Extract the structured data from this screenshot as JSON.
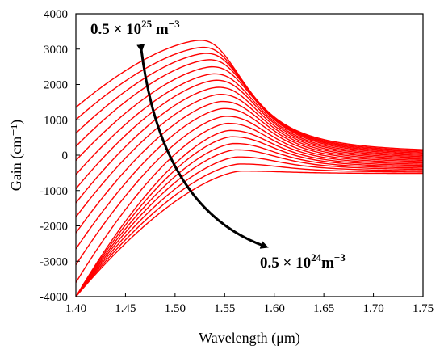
{
  "chart_data": {
    "type": "line",
    "title": "",
    "xlabel": "Wavelength (μm)",
    "ylabel": "Gain (cm⁻¹)",
    "xlim": [
      1.4,
      1.75
    ],
    "ylim": [
      -4000,
      4000
    ],
    "xticks": [
      "1.40",
      "1.45",
      "1.50",
      "1.55",
      "1.60",
      "1.65",
      "1.70",
      "1.75"
    ],
    "yticks": [
      "4000",
      "3000",
      "2000",
      "1000",
      "0",
      "-1000",
      "-2000",
      "-3000",
      "-4000"
    ],
    "grid": false,
    "line_color": "#ff0000",
    "annotations": {
      "top": {
        "coef": "0.5",
        "times": "×",
        "base": "10",
        "exp": "25",
        "unit": "m",
        "unit_exp": "−3"
      },
      "bottom": {
        "coef": "0.5",
        "times": "×",
        "base": "10",
        "exp": "24",
        "unit": "m",
        "unit_exp": "−3"
      }
    },
    "series_description": "20 gain curves for carrier densities from 0.5×10^24 m^-3 to 0.5×10^25 m^-3",
    "x": [
      1.4,
      1.425,
      1.45,
      1.475,
      1.5,
      1.525,
      1.55,
      1.575,
      1.6,
      1.625,
      1.65,
      1.675,
      1.7,
      1.725,
      1.75
    ],
    "peak_gain": [
      3250,
      3050,
      2880,
      2700,
      2500,
      2300,
      2120,
      1920,
      1720,
      1520,
      1320,
      1100,
      900,
      700,
      520,
      330,
      150,
      -50,
      -250,
      -450
    ],
    "peak_wavelength": [
      1.525,
      1.528,
      1.531,
      1.534,
      1.537,
      1.539,
      1.541,
      1.543,
      1.545,
      1.547,
      1.549,
      1.551,
      1.553,
      1.555,
      1.557,
      1.559,
      1.561,
      1.563,
      1.565,
      1.567
    ],
    "gain_at_1_40": [
      1350,
      1000,
      620,
      250,
      -150,
      -550,
      -950,
      -1350,
      -1750,
      -2200,
      -2650,
      -3100,
      -3600,
      -4000,
      -4000,
      -4000,
      -4000,
      -4000,
      -4000,
      -4000
    ],
    "gain_at_1_75": [
      50,
      20,
      -10,
      -40,
      -70,
      -100,
      -130,
      -160,
      -190,
      -220,
      -250,
      -280,
      -310,
      -340,
      -370,
      -400,
      -430,
      -460,
      -490,
      -520
    ]
  }
}
